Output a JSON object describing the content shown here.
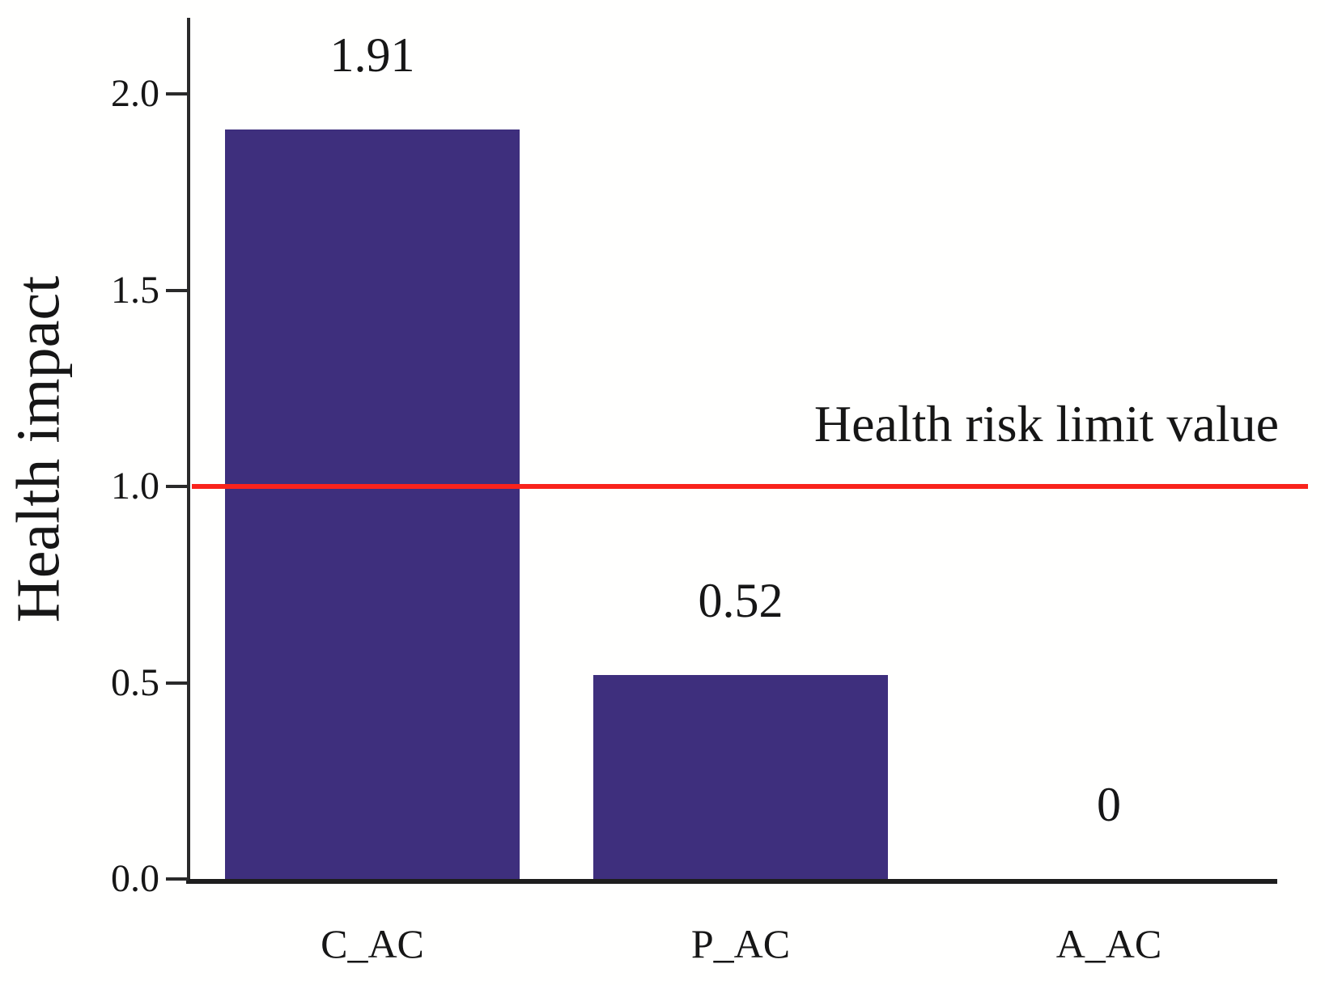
{
  "figure": {
    "background_color": "#fffffe",
    "axis_color": "#2a2a2a",
    "text_color": "#161616"
  },
  "chart_data": {
    "type": "bar",
    "categories": [
      "C_AC",
      "P_AC",
      "A_AC"
    ],
    "values": [
      1.91,
      0.52,
      0
    ],
    "value_labels": [
      "1.91",
      "0.52",
      "0"
    ],
    "title": "",
    "xlabel": "",
    "ylabel": "Health impact",
    "ylim": [
      0,
      2.2
    ],
    "ytick_values": [
      0.0,
      0.5,
      1.0,
      1.5,
      2.0
    ],
    "ytick_labels": [
      "0.0",
      "0.5",
      "1.0",
      "1.5",
      "2.0"
    ],
    "grid": false,
    "legend": null,
    "bar_color": "#3e2f7d",
    "reference_line": {
      "value": 1.0,
      "label": "Health risk limit value",
      "color": "#f9231c"
    }
  }
}
